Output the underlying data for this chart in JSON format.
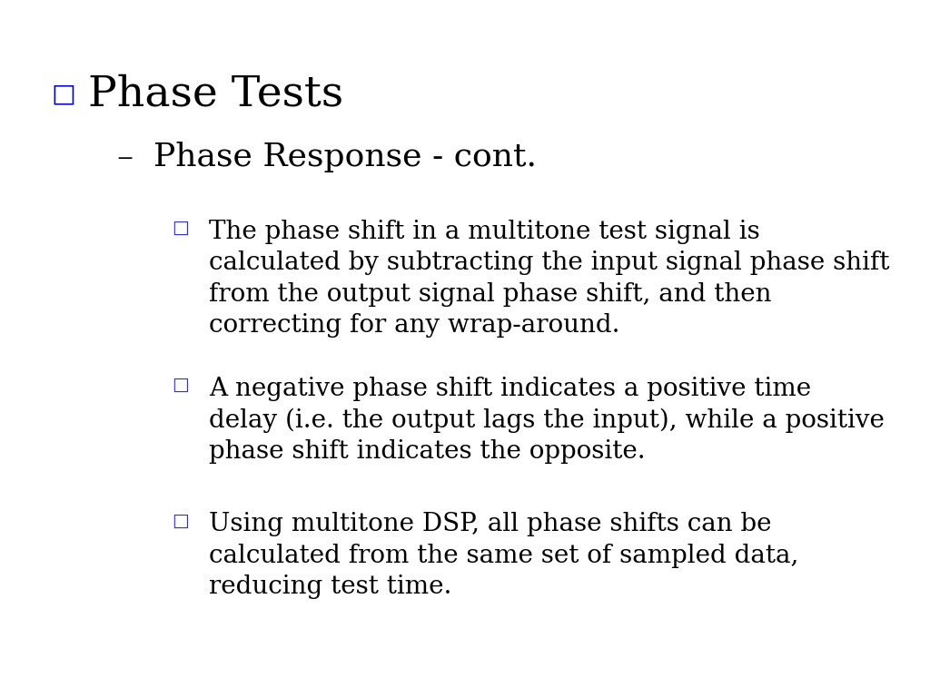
{
  "background_color": "#ffffff",
  "title": "Phase Tests",
  "title_bullet_color": "#0000cc",
  "title_color": "#000000",
  "subtitle": "Phase Response - cont.",
  "subtitle_color": "#000000",
  "bullet_color": "#3333cc",
  "bullets": [
    "The phase shift in a multitone test signal is\ncalculated by subtracting the input signal phase shift\nfrom the output signal phase shift, and then\ncorrecting for any wrap-around.",
    "A negative phase shift indicates a positive time\ndelay (i.e. the output lags the input), while a positive\nphase shift indicates the opposite.",
    "Using multitone DSP, all phase shifts can be\ncalculated from the same set of sampled data,\nreducing test time."
  ],
  "bullet_text_color": "#000000",
  "font_family": "DejaVu Serif",
  "title_fontsize": 34,
  "subtitle_fontsize": 26,
  "bullet_fontsize": 20
}
